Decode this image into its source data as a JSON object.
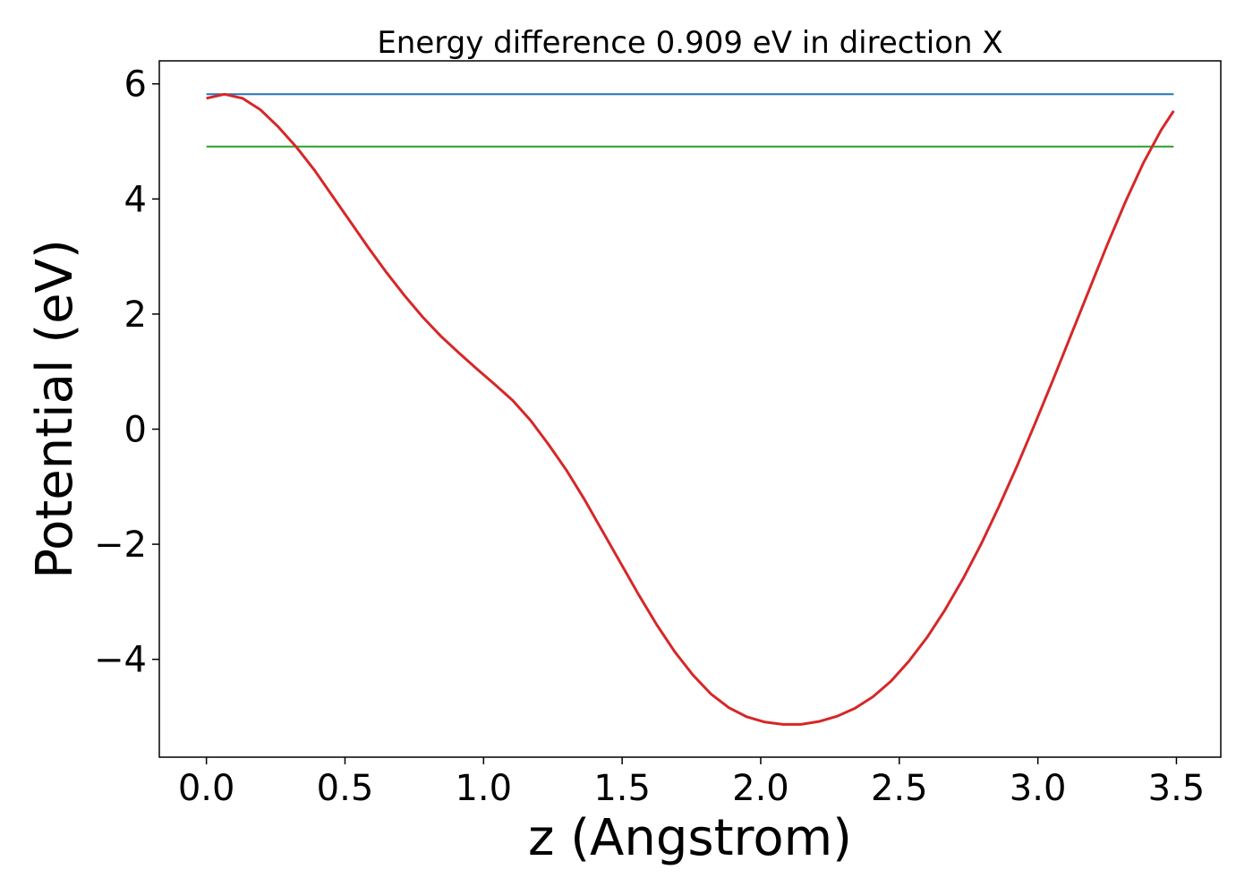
{
  "chart_data": {
    "type": "line",
    "title": "Energy difference 0.909 eV in direction X",
    "xlabel": "z (Angstrom)",
    "ylabel": "Potential (eV)",
    "xlim": [
      -0.17,
      3.66
    ],
    "ylim": [
      -5.7,
      6.4
    ],
    "xticks": [
      0.0,
      0.5,
      1.0,
      1.5,
      2.0,
      2.5,
      3.0,
      3.5
    ],
    "xtick_labels": [
      "0.0",
      "0.5",
      "1.0",
      "1.5",
      "2.0",
      "2.5",
      "3.0",
      "3.5"
    ],
    "yticks": [
      -4,
      -2,
      0,
      2,
      4,
      6
    ],
    "ytick_labels": [
      "−4",
      "−2",
      "0",
      "2",
      "4",
      "6"
    ],
    "grid": false,
    "series": [
      {
        "color": "#1f77b4",
        "x": [
          0.0,
          3.49
        ],
        "y": [
          5.82,
          5.82
        ]
      },
      {
        "color": "#2ca02c",
        "x": [
          0.0,
          3.49
        ],
        "y": [
          4.91,
          4.91
        ]
      },
      {
        "color": "#d62728",
        "x": [
          0.0,
          0.065,
          0.13,
          0.195,
          0.26,
          0.325,
          0.39,
          0.455,
          0.52,
          0.585,
          0.65,
          0.715,
          0.78,
          0.845,
          0.91,
          0.975,
          1.04,
          1.105,
          1.17,
          1.235,
          1.3,
          1.365,
          1.43,
          1.495,
          1.56,
          1.625,
          1.69,
          1.755,
          1.82,
          1.885,
          1.95,
          2.015,
          2.08,
          2.145,
          2.21,
          2.275,
          2.34,
          2.405,
          2.47,
          2.535,
          2.6,
          2.665,
          2.73,
          2.795,
          2.86,
          2.925,
          2.99,
          3.055,
          3.12,
          3.185,
          3.25,
          3.315,
          3.38,
          3.445,
          3.49
        ],
        "y": [
          5.75,
          5.82,
          5.75,
          5.55,
          5.25,
          4.9,
          4.5,
          4.05,
          3.6,
          3.15,
          2.72,
          2.32,
          1.95,
          1.62,
          1.33,
          1.05,
          0.78,
          0.5,
          0.15,
          -0.27,
          -0.72,
          -1.23,
          -1.78,
          -2.33,
          -2.88,
          -3.4,
          -3.87,
          -4.27,
          -4.6,
          -4.84,
          -5.0,
          -5.09,
          -5.13,
          -5.13,
          -5.08,
          -4.99,
          -4.85,
          -4.65,
          -4.38,
          -4.03,
          -3.62,
          -3.14,
          -2.6,
          -2.0,
          -1.34,
          -0.64,
          0.1,
          0.86,
          1.64,
          2.42,
          3.2,
          3.94,
          4.62,
          5.2,
          5.53
        ]
      }
    ]
  }
}
